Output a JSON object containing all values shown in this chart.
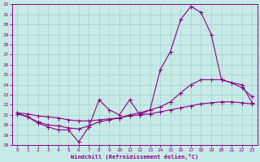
{
  "xlabel": "Windchill (Refroidissement éolien,°C)",
  "ylabel": "",
  "xlim": [
    -0.5,
    23.5
  ],
  "ylim": [
    18,
    32
  ],
  "yticks": [
    18,
    19,
    20,
    21,
    22,
    23,
    24,
    25,
    26,
    27,
    28,
    29,
    30,
    31,
    32
  ],
  "xticks": [
    0,
    1,
    2,
    3,
    4,
    5,
    6,
    7,
    8,
    9,
    10,
    11,
    12,
    13,
    14,
    15,
    16,
    17,
    18,
    19,
    20,
    21,
    22,
    23
  ],
  "background_color": "#c8eae6",
  "grid_color": "#a0d0cc",
  "line_color": "#880088",
  "curve1_x": [
    0,
    1,
    2,
    3,
    4,
    5,
    6,
    7,
    8,
    9,
    10,
    11,
    12,
    13,
    14,
    15,
    16,
    17,
    18,
    19,
    20,
    21,
    22,
    23
  ],
  "curve1_y": [
    21.2,
    20.8,
    20.2,
    19.8,
    19.5,
    19.5,
    18.3,
    19.8,
    22.5,
    21.5,
    21.0,
    22.5,
    21.0,
    21.5,
    25.5,
    27.3,
    30.5,
    31.8,
    31.2,
    29.0,
    24.5,
    24.2,
    24.0,
    22.2
  ],
  "curve2_x": [
    0,
    1,
    2,
    3,
    4,
    5,
    6,
    7,
    8,
    9,
    10,
    11,
    12,
    13,
    14,
    15,
    16,
    17,
    18,
    19,
    20,
    21,
    22,
    23
  ],
  "curve2_y": [
    21.1,
    20.8,
    20.3,
    20.0,
    19.9,
    19.7,
    19.6,
    19.9,
    20.3,
    20.5,
    20.7,
    21.0,
    21.2,
    21.5,
    21.8,
    22.3,
    23.2,
    24.0,
    24.5,
    24.5,
    24.5,
    24.2,
    23.7,
    22.8
  ],
  "curve3_x": [
    0,
    1,
    2,
    3,
    4,
    5,
    6,
    7,
    8,
    9,
    10,
    11,
    12,
    13,
    14,
    15,
    16,
    17,
    18,
    19,
    20,
    21,
    22,
    23
  ],
  "curve3_y": [
    21.2,
    21.1,
    20.9,
    20.8,
    20.7,
    20.5,
    20.4,
    20.4,
    20.5,
    20.6,
    20.7,
    20.9,
    21.0,
    21.1,
    21.3,
    21.5,
    21.7,
    21.9,
    22.1,
    22.2,
    22.3,
    22.3,
    22.2,
    22.1
  ]
}
